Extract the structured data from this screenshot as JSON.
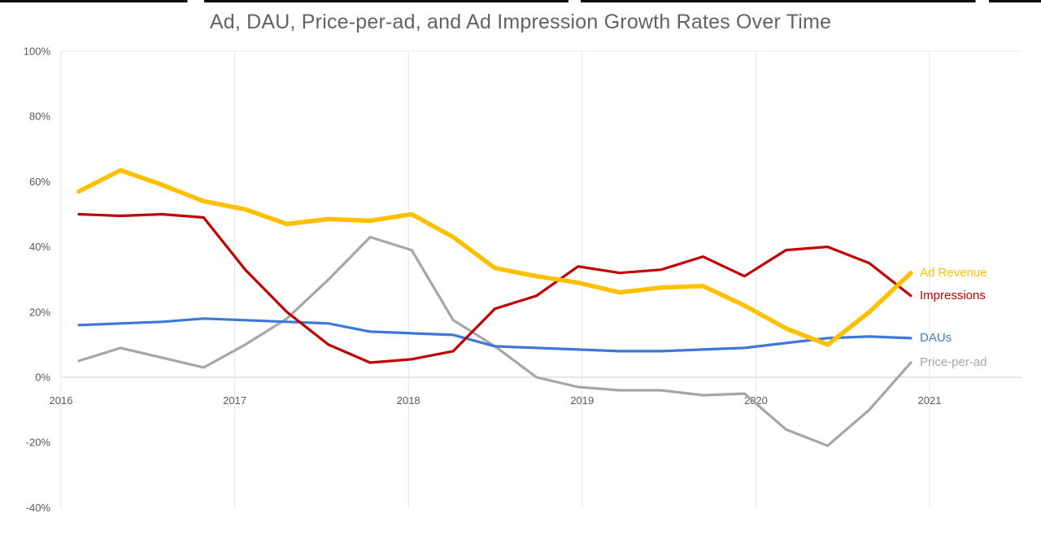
{
  "page": {
    "background": "#ffffff",
    "top_border_color": "#0a0a0a"
  },
  "chart_data": {
    "type": "line",
    "title": "Ad, DAU, Price-per-ad, and Ad Impression Growth Rates Over Time",
    "xlabel": "",
    "ylabel": "",
    "ylim": [
      -40,
      100
    ],
    "grid": {
      "vertical_years": true,
      "horizontal_at": [
        100,
        0
      ]
    },
    "legend_position": "right-end-labels",
    "x_categories": [
      "2016 Q1",
      "2016 Q2",
      "2016 Q3",
      "2016 Q4",
      "2017 Q1",
      "2017 Q2",
      "2017 Q3",
      "2017 Q4",
      "2018 Q1",
      "2018 Q2",
      "2018 Q3",
      "2018 Q4",
      "2019 Q1",
      "2019 Q2",
      "2019 Q3",
      "2019 Q4",
      "2020 Q1",
      "2020 Q2",
      "2020 Q3",
      "2020 Q4",
      "2021 Q1"
    ],
    "x_ticks": [
      {
        "value": 2016,
        "label": "2016"
      },
      {
        "value": 2017,
        "label": "2017"
      },
      {
        "value": 2018,
        "label": "2018"
      },
      {
        "value": 2019,
        "label": "2019"
      },
      {
        "value": 2020,
        "label": "2020"
      },
      {
        "value": 2021,
        "label": "2021"
      }
    ],
    "y_ticks": [
      {
        "value": 100,
        "label": "100%"
      },
      {
        "value": 80,
        "label": "80%"
      },
      {
        "value": 60,
        "label": "60%"
      },
      {
        "value": 40,
        "label": "40%"
      },
      {
        "value": 20,
        "label": "20%"
      },
      {
        "value": 0,
        "label": "0%"
      },
      {
        "value": -20,
        "label": "-20%"
      },
      {
        "value": -40,
        "label": "-40%"
      }
    ],
    "series": [
      {
        "name": "Ad Revenue",
        "color": "#FFC000",
        "line_width": 5.5,
        "values": [
          57,
          63.5,
          59,
          54,
          51.5,
          47,
          48.5,
          48,
          50,
          43,
          33.5,
          31,
          29,
          26,
          27.5,
          28,
          22,
          15,
          10,
          20,
          32
        ]
      },
      {
        "name": "Impressions",
        "color": "#C00000",
        "line_width": 3.2,
        "values": [
          50,
          49.5,
          50,
          49,
          33,
          20,
          10,
          4.5,
          5.5,
          8,
          21,
          25,
          34,
          32,
          33,
          37,
          31,
          39,
          40,
          35,
          25
        ]
      },
      {
        "name": "DAUs",
        "color": "#3C78D8",
        "line_width": 3.2,
        "values": [
          16,
          16.5,
          17,
          18,
          17.5,
          17,
          16.5,
          14,
          13.5,
          13,
          9.5,
          9,
          8.5,
          8,
          8,
          8.5,
          9,
          10.5,
          12,
          12.5,
          12
        ]
      },
      {
        "name": "Price-per-ad",
        "color": "#A6A6A6",
        "line_width": 3.2,
        "values": [
          5,
          9,
          6,
          3,
          10,
          18,
          30,
          43,
          39,
          17.5,
          9.5,
          0,
          -3,
          -4,
          -4,
          -5.5,
          -5,
          -16,
          -21,
          -10,
          4.5
        ]
      }
    ]
  }
}
